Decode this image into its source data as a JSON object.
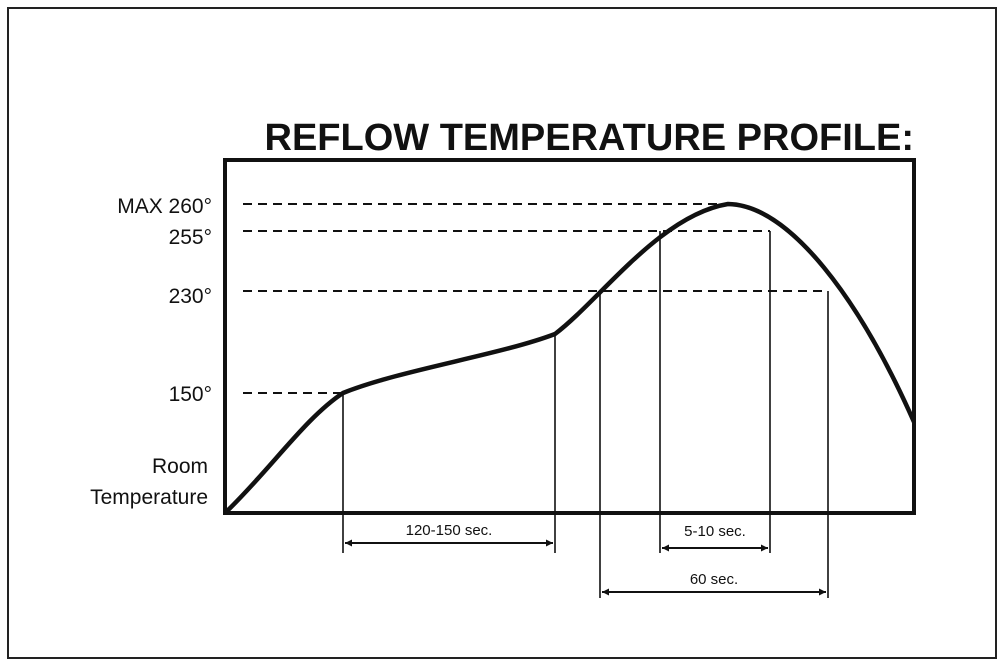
{
  "title": "REFLOW TEMPERATURE PROFILE:",
  "temperature_labels": [
    "MAX 260°",
    "255°",
    "230°",
    "150°"
  ],
  "room_label": [
    "Room",
    "Temperature"
  ],
  "intervals": [
    "120-150 sec.",
    "5-10 sec.",
    "60 sec."
  ]
}
